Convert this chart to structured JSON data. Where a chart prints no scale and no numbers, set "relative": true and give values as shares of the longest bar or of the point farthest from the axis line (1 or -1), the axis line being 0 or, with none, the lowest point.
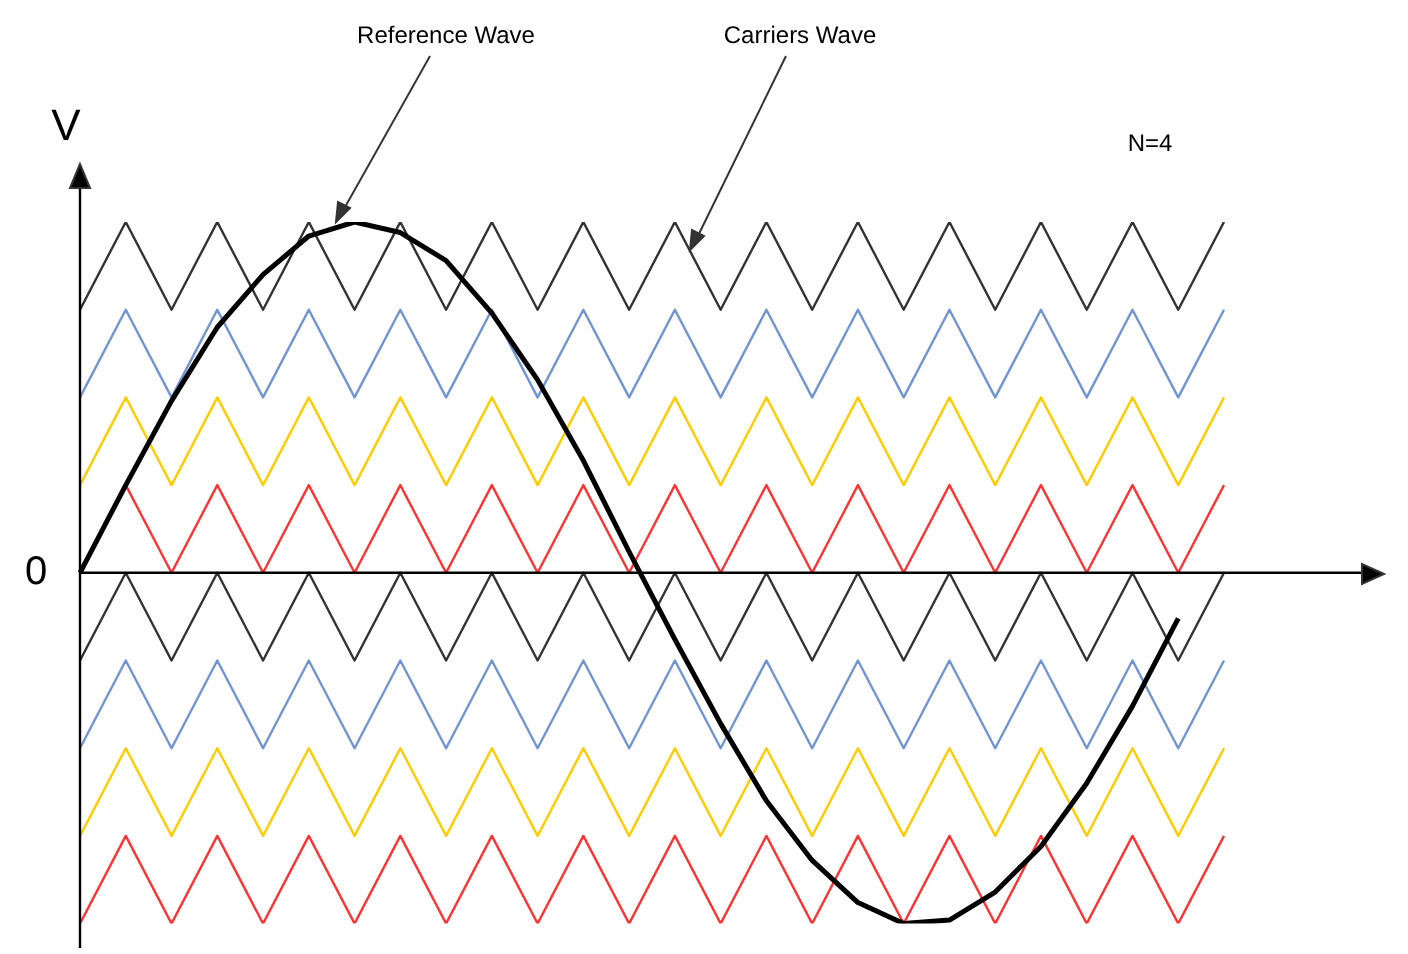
{
  "chart_data": {
    "type": "line",
    "relative": true,
    "ylabel": "V",
    "legend": false,
    "marker": "none",
    "line_style": "solid",
    "annotations": [
      "Reference Wave",
      "Carriers Wave",
      "N=4",
      "0"
    ],
    "categories": [
      null,
      null,
      null,
      null,
      null,
      null,
      null,
      null,
      null,
      null,
      null,
      null,
      null,
      null,
      null,
      null,
      null,
      null,
      null,
      null,
      null,
      null,
      null,
      null,
      null,
      null
    ],
    "series": [
      {
        "color": "#333333",
        "values": [
          0.75,
          1,
          0.75,
          1,
          0.75,
          1,
          0.75,
          1,
          0.75,
          1,
          0.75,
          1,
          0.75,
          1,
          0.75,
          1,
          0.75,
          1,
          0.75,
          1,
          0.75,
          1,
          0.75,
          1,
          0.75,
          1
        ]
      },
      {
        "color": "#7094d4",
        "values": [
          0.5,
          0.75,
          0.5,
          0.75,
          0.5,
          0.75,
          0.5,
          0.75,
          0.5,
          0.75,
          0.5,
          0.75,
          0.5,
          0.75,
          0.5,
          0.75,
          0.5,
          0.75,
          0.5,
          0.75,
          0.5,
          0.75,
          0.5,
          0.75,
          0.5,
          0.75
        ]
      },
      {
        "color": "#ffcc00",
        "values": [
          0.25,
          0.5,
          0.25,
          0.5,
          0.25,
          0.5,
          0.25,
          0.5,
          0.25,
          0.5,
          0.25,
          0.5,
          0.25,
          0.5,
          0.25,
          0.5,
          0.25,
          0.5,
          0.25,
          0.5,
          0.25,
          0.5,
          0.25,
          0.5,
          0.25,
          0.5
        ]
      },
      {
        "color": "#ff3333",
        "values": [
          0,
          0.25,
          0,
          0.25,
          0,
          0.25,
          0,
          0.25,
          0,
          0.25,
          0,
          0.25,
          0,
          0.25,
          0,
          0.25,
          0,
          0.25,
          0,
          0.25,
          0,
          0.25,
          0,
          0.25,
          0,
          0.25
        ]
      },
      {
        "color": "#333333",
        "values": [
          -0.25,
          0,
          -0.25,
          0,
          -0.25,
          0,
          -0.25,
          0,
          -0.25,
          0,
          -0.25,
          0,
          -0.25,
          0,
          -0.25,
          0,
          -0.25,
          0,
          -0.25,
          0,
          -0.25,
          0,
          -0.25,
          0,
          -0.25,
          0
        ]
      },
      {
        "color": "#7094d4",
        "values": [
          -0.5,
          -0.25,
          -0.5,
          -0.25,
          -0.5,
          -0.25,
          -0.5,
          -0.25,
          -0.5,
          -0.25,
          -0.5,
          -0.25,
          -0.5,
          -0.25,
          -0.5,
          -0.25,
          -0.5,
          -0.25,
          -0.5,
          -0.25,
          -0.5,
          -0.25,
          -0.5,
          -0.25,
          -0.5,
          -0.25
        ]
      },
      {
        "color": "#ffcc00",
        "values": [
          -0.75,
          -0.5,
          -0.75,
          -0.5,
          -0.75,
          -0.5,
          -0.75,
          -0.5,
          -0.75,
          -0.5,
          -0.75,
          -0.5,
          -0.75,
          -0.5,
          -0.75,
          -0.5,
          -0.75,
          -0.5,
          -0.75,
          -0.5,
          -0.75,
          -0.5,
          -0.75,
          -0.5,
          -0.75,
          -0.5
        ]
      },
      {
        "color": "#ff3333",
        "values": [
          -1,
          -0.75,
          -1,
          -0.75,
          -1,
          -0.75,
          -1,
          -0.75,
          -1,
          -0.75,
          -1,
          -0.75,
          -1,
          -0.75,
          -1,
          -0.75,
          -1,
          -0.75,
          -1,
          -0.75,
          -1,
          -0.75,
          -1,
          -0.75,
          -1,
          -0.75
        ]
      },
      {
        "color": "#000000",
        "values": [
          0,
          0.25,
          0.49,
          0.7,
          0.85,
          0.96,
          1,
          0.97,
          0.89,
          0.74,
          0.55,
          0.32,
          0.06,
          -0.19,
          -0.43,
          -0.65,
          -0.82,
          -0.94,
          -1,
          -0.99,
          -0.91,
          -0.78,
          -0.6,
          -0.38,
          -0.13,
          null
        ]
      }
    ]
  }
}
